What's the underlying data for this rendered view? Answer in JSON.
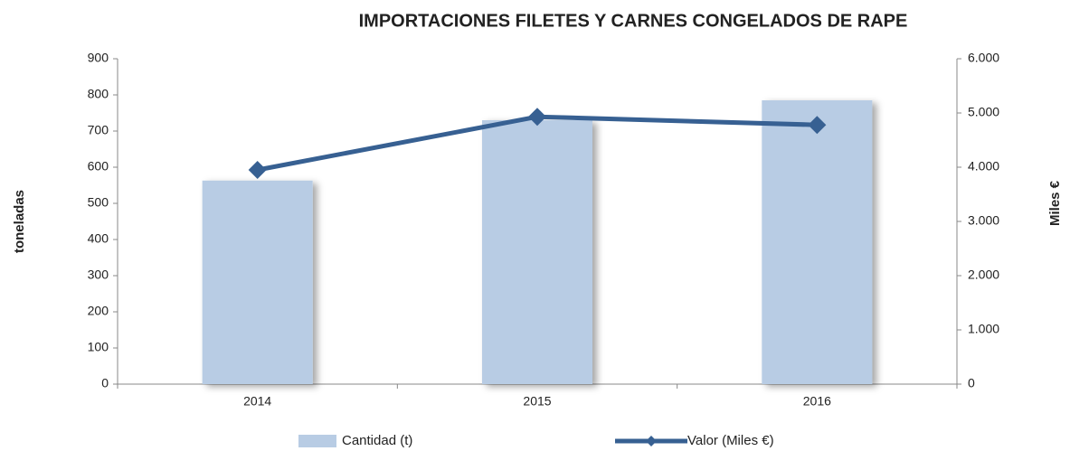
{
  "chart_data": {
    "type": "bar_line",
    "title": "IMPORTACIONES FILETES Y CARNES CONGELADOS DE RAPE",
    "ylabel": "toneladas",
    "y2label": "Miles €",
    "categories": [
      "2014",
      "2015",
      "2016"
    ],
    "series": [
      {
        "name": "Cantidad (t)",
        "type": "bar",
        "color": "#b8cce4",
        "values": [
          563,
          730,
          785
        ]
      },
      {
        "name": "Valor (Miles €)",
        "type": "line",
        "color": "#376092",
        "axis": "y2",
        "values": [
          3950,
          4930,
          4780
        ]
      }
    ],
    "ylim": [
      0,
      900
    ],
    "yticks": [
      0,
      100,
      200,
      300,
      400,
      500,
      600,
      700,
      800,
      900
    ],
    "y2lim": [
      0,
      6000
    ],
    "y2ticks": [
      0,
      {
        "value": 1000,
        "label": "1.000"
      },
      {
        "value": 2000,
        "label": "2.000"
      },
      {
        "value": 3000,
        "label": "3.000"
      },
      {
        "value": 4000,
        "label": "4.000"
      },
      {
        "value": 5000,
        "label": "5.000"
      },
      {
        "value": 6000,
        "label": "6.000"
      }
    ],
    "legend": "bottom",
    "grid": false
  }
}
